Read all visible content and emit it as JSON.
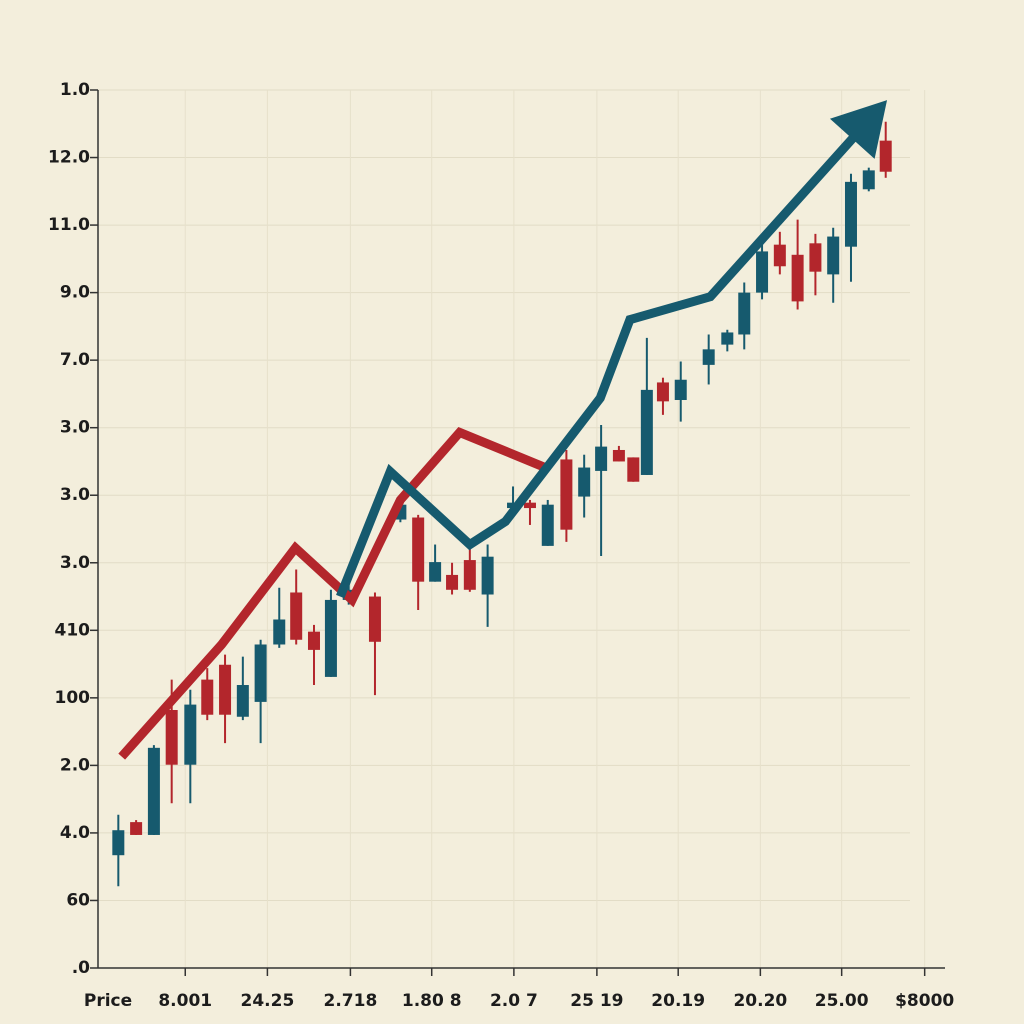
{
  "chart_data": {
    "type": "candlestick",
    "x_label": "Price",
    "xlim": [
      0,
      100
    ],
    "ylim": [
      0,
      13
    ],
    "grid": true,
    "up_color": "#165a6e",
    "down_color": "#b3262c",
    "xticks": [
      {
        "value": 10.3,
        "label": "8.001"
      },
      {
        "value": 20.0,
        "label": "24.25"
      },
      {
        "value": 29.8,
        "label": "2.718"
      },
      {
        "value": 39.4,
        "label": "1.80 8"
      },
      {
        "value": 49.1,
        "label": "2.0 7"
      },
      {
        "value": 58.9,
        "label": "25 19"
      },
      {
        "value": 68.5,
        "label": "20.19"
      },
      {
        "value": 78.2,
        "label": "20.20"
      },
      {
        "value": 87.8,
        "label": "25.00"
      },
      {
        "value": 97.6,
        "label": "$8000"
      }
    ],
    "yticks": [
      {
        "value": 0,
        "label": ".0"
      },
      {
        "value": 1,
        "label": "60"
      },
      {
        "value": 2,
        "label": "4.0"
      },
      {
        "value": 3,
        "label": "2.0"
      },
      {
        "value": 4,
        "label": "100"
      },
      {
        "value": 5,
        "label": "410"
      },
      {
        "value": 6,
        "label": "3.0"
      },
      {
        "value": 7,
        "label": "3.0"
      },
      {
        "value": 8,
        "label": "3.0"
      },
      {
        "value": 9,
        "label": "7.0"
      },
      {
        "value": 10,
        "label": "9.0"
      },
      {
        "value": 11,
        "label": "11.0"
      },
      {
        "value": 12,
        "label": "12.0"
      },
      {
        "value": 13,
        "label": "1.0"
      }
    ],
    "x": [
      2.4,
      4.5,
      6.6,
      8.7,
      10.9,
      12.9,
      15.0,
      17.1,
      19.2,
      21.4,
      23.4,
      25.5,
      27.5,
      29.6,
      32.7,
      35.7,
      37.8,
      39.8,
      41.8,
      43.9,
      46.0,
      49.0,
      51.0,
      53.1,
      55.3,
      57.4,
      59.4,
      61.5,
      63.2,
      64.8,
      66.7,
      68.8,
      72.1,
      74.3,
      76.3,
      78.4,
      80.5,
      82.6,
      84.7,
      86.8,
      88.9,
      91.0,
      93.0
    ],
    "open": [
      1.67,
      2.16,
      1.97,
      3.82,
      3.01,
      4.27,
      4.49,
      3.72,
      3.94,
      4.79,
      5.56,
      4.98,
      4.31,
      5.45,
      5.5,
      6.64,
      6.67,
      5.72,
      5.82,
      6.04,
      5.53,
      6.81,
      6.89,
      6.25,
      7.53,
      6.98,
      7.36,
      7.67,
      7.56,
      7.3,
      8.67,
      8.41,
      8.93,
      9.23,
      9.38,
      10.0,
      10.71,
      10.56,
      10.73,
      10.27,
      10.68,
      11.53,
      12.25
    ],
    "high": [
      2.27,
      2.19,
      3.3,
      4.27,
      4.12,
      4.44,
      4.64,
      4.61,
      4.86,
      5.63,
      5.9,
      5.08,
      5.6,
      5.75,
      5.56,
      6.9,
      6.71,
      6.27,
      6.0,
      6.27,
      6.27,
      7.13,
      6.93,
      6.93,
      7.67,
      7.6,
      8.04,
      7.73,
      7.56,
      9.33,
      8.74,
      8.98,
      9.38,
      9.45,
      10.15,
      10.83,
      10.9,
      11.08,
      10.87,
      10.96,
      11.76,
      11.85,
      12.53
    ],
    "low": [
      1.21,
      1.97,
      1.97,
      2.44,
      2.44,
      3.67,
      3.33,
      3.67,
      3.33,
      4.74,
      4.79,
      4.19,
      4.31,
      5.38,
      4.04,
      6.6,
      5.3,
      5.72,
      5.53,
      5.57,
      5.05,
      6.79,
      6.56,
      6.25,
      6.31,
      6.67,
      6.1,
      7.5,
      7.2,
      7.3,
      8.19,
      8.09,
      8.64,
      9.13,
      9.16,
      9.9,
      10.27,
      9.75,
      9.96,
      9.85,
      10.16,
      11.5,
      11.7
    ],
    "close": [
      2.04,
      1.97,
      3.26,
      3.01,
      3.9,
      3.75,
      3.75,
      4.19,
      4.79,
      5.16,
      4.86,
      4.71,
      5.45,
      5.6,
      4.83,
      6.86,
      5.72,
      6.01,
      5.6,
      5.6,
      6.09,
      6.89,
      6.81,
      6.86,
      6.49,
      7.41,
      7.72,
      7.5,
      7.2,
      8.56,
      8.39,
      8.71,
      9.16,
      9.41,
      10.0,
      10.61,
      10.39,
      9.87,
      10.31,
      10.83,
      11.64,
      11.81,
      11.79
    ],
    "lines": [
      {
        "color": "#b3262c",
        "x": [
          2.8,
          14.6,
          23.3,
          30.0,
          35.7,
          42.7,
          52.8
        ],
        "values": [
          3.13,
          4.79,
          6.22,
          5.45,
          6.93,
          7.93,
          7.41
        ]
      },
      {
        "color": "#165a6e",
        "x": [
          28.6,
          34.5,
          43.9,
          48.1,
          59.3,
          62.8,
          72.3,
          90.0
        ],
        "values": [
          5.5,
          7.35,
          6.27,
          6.61,
          8.44,
          9.6,
          9.94,
          12.41
        ]
      }
    ]
  }
}
